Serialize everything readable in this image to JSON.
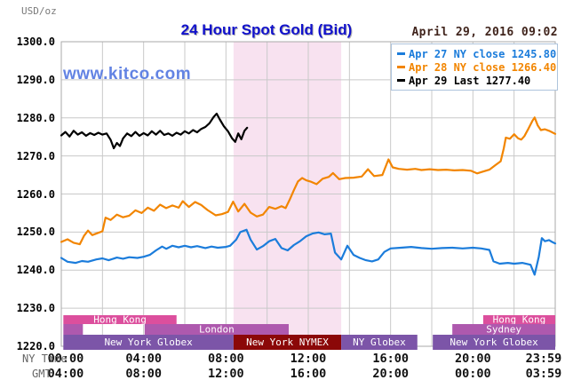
{
  "header": {
    "units_label": "USD/oz",
    "title": "24 Hour Spot Gold (Bid)",
    "timestamp": "April 29, 2016 09:02"
  },
  "watermark": "www.kitco.com",
  "legend": {
    "items": [
      {
        "label": "Apr 27 NY close 1245.80",
        "color": "#1B7CDB"
      },
      {
        "label": "Apr 28 NY close 1266.40",
        "color": "#F28500"
      },
      {
        "label": "Apr 29 Last 1277.40",
        "color": "#000000"
      }
    ]
  },
  "footer": {
    "ny_time_label": "NY Time",
    "gmt_label": "GMT"
  },
  "chart_data": {
    "type": "line",
    "title": "24 Hour Spot Gold (Bid)",
    "ylabel": "USD/oz",
    "grid": true,
    "x_axis": {
      "xlim_hours": [
        0,
        24
      ],
      "gridline_every_hours": 2,
      "tick_hours": [
        0,
        4,
        8,
        12,
        16,
        20,
        24
      ],
      "rows": [
        {
          "name": "NY Time",
          "ticks": [
            "00:00",
            "04:00",
            "08:00",
            "12:00",
            "16:00",
            "20:00",
            "23:59"
          ]
        },
        {
          "name": "GMT",
          "ticks": [
            "04:00",
            "08:00",
            "12:00",
            "16:00",
            "20:00",
            "00:00",
            "03:59"
          ]
        }
      ]
    },
    "y_axis": {
      "ylim": [
        1220,
        1300
      ],
      "tick_step": 10,
      "tick_labels": [
        "1300.0",
        "1290.0",
        "1280.0",
        "1270.0",
        "1260.0",
        "1250.0",
        "1240.0",
        "1230.0",
        "1220.0"
      ]
    },
    "highlight_region": {
      "start_hour": 8.37,
      "end_hour": 13.6,
      "color": "#F8E2F0"
    },
    "series": [
      {
        "name": "Apr 27 (NY close 1245.80)",
        "color": "#1B7CDB",
        "points": [
          [
            0,
            1243.2
          ],
          [
            0.3,
            1242.2
          ],
          [
            0.7,
            1241.9
          ],
          [
            1,
            1242.4
          ],
          [
            1.3,
            1242.2
          ],
          [
            1.7,
            1242.8
          ],
          [
            2,
            1243.1
          ],
          [
            2.3,
            1242.6
          ],
          [
            2.7,
            1243.3
          ],
          [
            3,
            1243.0
          ],
          [
            3.3,
            1243.4
          ],
          [
            3.7,
            1243.2
          ],
          [
            4,
            1243.5
          ],
          [
            4.3,
            1244.0
          ],
          [
            4.6,
            1245.2
          ],
          [
            4.9,
            1246.2
          ],
          [
            5.1,
            1245.6
          ],
          [
            5.4,
            1246.4
          ],
          [
            5.7,
            1246.0
          ],
          [
            6,
            1246.4
          ],
          [
            6.3,
            1246.0
          ],
          [
            6.6,
            1246.3
          ],
          [
            7,
            1245.8
          ],
          [
            7.3,
            1246.2
          ],
          [
            7.6,
            1245.9
          ],
          [
            8,
            1246.1
          ],
          [
            8.2,
            1246.4
          ],
          [
            8.5,
            1248.0
          ],
          [
            8.7,
            1250.0
          ],
          [
            9,
            1250.6
          ],
          [
            9.2,
            1248.0
          ],
          [
            9.5,
            1245.4
          ],
          [
            9.8,
            1246.3
          ],
          [
            10.1,
            1247.6
          ],
          [
            10.4,
            1248.2
          ],
          [
            10.7,
            1245.8
          ],
          [
            11,
            1245.2
          ],
          [
            11.3,
            1246.6
          ],
          [
            11.6,
            1247.6
          ],
          [
            11.9,
            1248.9
          ],
          [
            12.2,
            1249.6
          ],
          [
            12.5,
            1249.9
          ],
          [
            12.8,
            1249.4
          ],
          [
            13.1,
            1249.6
          ],
          [
            13.3,
            1244.6
          ],
          [
            13.6,
            1242.8
          ],
          [
            13.9,
            1246.4
          ],
          [
            14.2,
            1244.0
          ],
          [
            14.5,
            1243.2
          ],
          [
            14.8,
            1242.6
          ],
          [
            15.1,
            1242.3
          ],
          [
            15.4,
            1242.8
          ],
          [
            15.7,
            1244.8
          ],
          [
            16,
            1245.7
          ],
          [
            16.5,
            1245.9
          ],
          [
            17,
            1246.1
          ],
          [
            17.5,
            1245.8
          ],
          [
            18,
            1245.6
          ],
          [
            18.5,
            1245.8
          ],
          [
            19,
            1245.9
          ],
          [
            19.5,
            1245.7
          ],
          [
            20,
            1245.9
          ],
          [
            20.4,
            1245.7
          ],
          [
            20.8,
            1245.3
          ],
          [
            21,
            1242.3
          ],
          [
            21.3,
            1241.7
          ],
          [
            21.7,
            1241.9
          ],
          [
            22,
            1241.7
          ],
          [
            22.4,
            1241.9
          ],
          [
            22.8,
            1241.4
          ],
          [
            23,
            1238.8
          ],
          [
            23.2,
            1243.5
          ],
          [
            23.35,
            1248.4
          ],
          [
            23.5,
            1247.6
          ],
          [
            23.7,
            1247.9
          ],
          [
            23.85,
            1247.4
          ],
          [
            24,
            1247.0
          ]
        ]
      },
      {
        "name": "Apr 28 (NY close 1266.40)",
        "color": "#F28500",
        "points": [
          [
            0,
            1247.4
          ],
          [
            0.3,
            1248.1
          ],
          [
            0.6,
            1247.2
          ],
          [
            0.9,
            1246.8
          ],
          [
            1.1,
            1249.0
          ],
          [
            1.3,
            1250.4
          ],
          [
            1.5,
            1249.2
          ],
          [
            1.8,
            1249.8
          ],
          [
            2,
            1250.2
          ],
          [
            2.15,
            1253.8
          ],
          [
            2.4,
            1253.2
          ],
          [
            2.7,
            1254.6
          ],
          [
            3,
            1253.9
          ],
          [
            3.3,
            1254.3
          ],
          [
            3.6,
            1255.7
          ],
          [
            3.9,
            1255.0
          ],
          [
            4.2,
            1256.4
          ],
          [
            4.5,
            1255.6
          ],
          [
            4.8,
            1257.2
          ],
          [
            5.1,
            1256.3
          ],
          [
            5.4,
            1257.0
          ],
          [
            5.7,
            1256.4
          ],
          [
            5.9,
            1258.1
          ],
          [
            6.2,
            1256.6
          ],
          [
            6.5,
            1257.9
          ],
          [
            6.8,
            1257.1
          ],
          [
            7.1,
            1255.8
          ],
          [
            7.5,
            1254.4
          ],
          [
            7.8,
            1254.7
          ],
          [
            8.1,
            1255.3
          ],
          [
            8.35,
            1258.0
          ],
          [
            8.6,
            1255.4
          ],
          [
            8.9,
            1257.4
          ],
          [
            9.2,
            1255.1
          ],
          [
            9.5,
            1254.1
          ],
          [
            9.8,
            1254.6
          ],
          [
            10.1,
            1256.6
          ],
          [
            10.4,
            1256.1
          ],
          [
            10.7,
            1256.8
          ],
          [
            10.9,
            1256.3
          ],
          [
            11.1,
            1258.5
          ],
          [
            11.3,
            1261.0
          ],
          [
            11.5,
            1263.3
          ],
          [
            11.7,
            1264.2
          ],
          [
            11.9,
            1263.6
          ],
          [
            12.1,
            1263.3
          ],
          [
            12.4,
            1262.6
          ],
          [
            12.7,
            1264.0
          ],
          [
            13,
            1264.5
          ],
          [
            13.2,
            1265.5
          ],
          [
            13.5,
            1263.9
          ],
          [
            13.8,
            1264.2
          ],
          [
            14.2,
            1264.3
          ],
          [
            14.6,
            1264.6
          ],
          [
            14.9,
            1266.5
          ],
          [
            15.2,
            1264.7
          ],
          [
            15.6,
            1265.0
          ],
          [
            15.9,
            1269.1
          ],
          [
            16.1,
            1267.0
          ],
          [
            16.4,
            1266.6
          ],
          [
            16.8,
            1266.4
          ],
          [
            17.2,
            1266.6
          ],
          [
            17.5,
            1266.3
          ],
          [
            17.9,
            1266.5
          ],
          [
            18.3,
            1266.3
          ],
          [
            18.7,
            1266.4
          ],
          [
            19.1,
            1266.2
          ],
          [
            19.5,
            1266.3
          ],
          [
            19.9,
            1266.1
          ],
          [
            20.2,
            1265.4
          ],
          [
            20.5,
            1265.9
          ],
          [
            20.8,
            1266.4
          ],
          [
            21.1,
            1267.6
          ],
          [
            21.35,
            1268.6
          ],
          [
            21.5,
            1272.0
          ],
          [
            21.6,
            1274.8
          ],
          [
            21.8,
            1274.5
          ],
          [
            22,
            1275.7
          ],
          [
            22.2,
            1274.6
          ],
          [
            22.35,
            1274.3
          ],
          [
            22.5,
            1275.2
          ],
          [
            22.7,
            1277.2
          ],
          [
            22.9,
            1279.3
          ],
          [
            23,
            1280.1
          ],
          [
            23.15,
            1278.0
          ],
          [
            23.3,
            1276.8
          ],
          [
            23.5,
            1277.0
          ],
          [
            23.7,
            1276.6
          ],
          [
            23.85,
            1276.2
          ],
          [
            24,
            1275.8
          ]
        ]
      },
      {
        "name": "Apr 29 (Last 1277.40)",
        "color": "#000000",
        "points": [
          [
            0,
            1275.4
          ],
          [
            0.2,
            1276.3
          ],
          [
            0.4,
            1275.1
          ],
          [
            0.6,
            1276.6
          ],
          [
            0.8,
            1275.6
          ],
          [
            1,
            1276.2
          ],
          [
            1.2,
            1275.3
          ],
          [
            1.4,
            1276.0
          ],
          [
            1.6,
            1275.5
          ],
          [
            1.8,
            1276.1
          ],
          [
            2,
            1275.6
          ],
          [
            2.2,
            1275.9
          ],
          [
            2.4,
            1274.2
          ],
          [
            2.55,
            1272.0
          ],
          [
            2.7,
            1273.4
          ],
          [
            2.85,
            1272.6
          ],
          [
            3,
            1274.6
          ],
          [
            3.2,
            1275.9
          ],
          [
            3.4,
            1275.2
          ],
          [
            3.6,
            1276.3
          ],
          [
            3.8,
            1275.3
          ],
          [
            4,
            1276.0
          ],
          [
            4.2,
            1275.4
          ],
          [
            4.4,
            1276.5
          ],
          [
            4.6,
            1275.6
          ],
          [
            4.8,
            1276.6
          ],
          [
            5,
            1275.5
          ],
          [
            5.2,
            1275.9
          ],
          [
            5.4,
            1275.3
          ],
          [
            5.6,
            1276.1
          ],
          [
            5.8,
            1275.6
          ],
          [
            6,
            1276.5
          ],
          [
            6.2,
            1275.9
          ],
          [
            6.4,
            1276.8
          ],
          [
            6.6,
            1276.2
          ],
          [
            6.8,
            1277.1
          ],
          [
            7,
            1277.6
          ],
          [
            7.2,
            1278.6
          ],
          [
            7.4,
            1280.2
          ],
          [
            7.55,
            1281.1
          ],
          [
            7.7,
            1279.6
          ],
          [
            7.9,
            1277.8
          ],
          [
            8.1,
            1276.5
          ],
          [
            8.3,
            1274.6
          ],
          [
            8.45,
            1273.7
          ],
          [
            8.6,
            1275.9
          ],
          [
            8.75,
            1274.4
          ],
          [
            8.9,
            1276.6
          ],
          [
            9.03,
            1277.4
          ]
        ]
      }
    ],
    "session_rows": [
      {
        "segments": [
          {
            "label": "Hong Kong",
            "start": 0.1,
            "end": 5.6,
            "color": "#DC4F9D"
          },
          {
            "label": "Hong Kong",
            "start": 20.5,
            "end": 24,
            "color": "#DC4F9D"
          }
        ]
      },
      {
        "segments": [
          {
            "label": "",
            "start": 0.1,
            "end": 1.05,
            "color": "#AE59AE"
          },
          {
            "label": "London",
            "start": 4.05,
            "end": 11.05,
            "color": "#AE59AE"
          },
          {
            "label": "Sydney",
            "start": 19.0,
            "end": 24,
            "color": "#AE59AE"
          }
        ]
      },
      {
        "segments": [
          {
            "label": "New York Globex",
            "start": 0.1,
            "end": 8.37,
            "color": "#7C55A8"
          },
          {
            "label": "New York NYMEX",
            "start": 8.37,
            "end": 13.6,
            "color": "#8B0808"
          },
          {
            "label": "NY Globex",
            "start": 13.6,
            "end": 17.3,
            "color": "#7C55A8"
          },
          {
            "label": "New York Globex",
            "start": 18.05,
            "end": 24,
            "color": "#7C55A8"
          }
        ]
      }
    ],
    "colors": {
      "gridline": "#c9c9c9",
      "plot_border": "#aaaaaa",
      "session_label_text": "#ffffff"
    }
  }
}
